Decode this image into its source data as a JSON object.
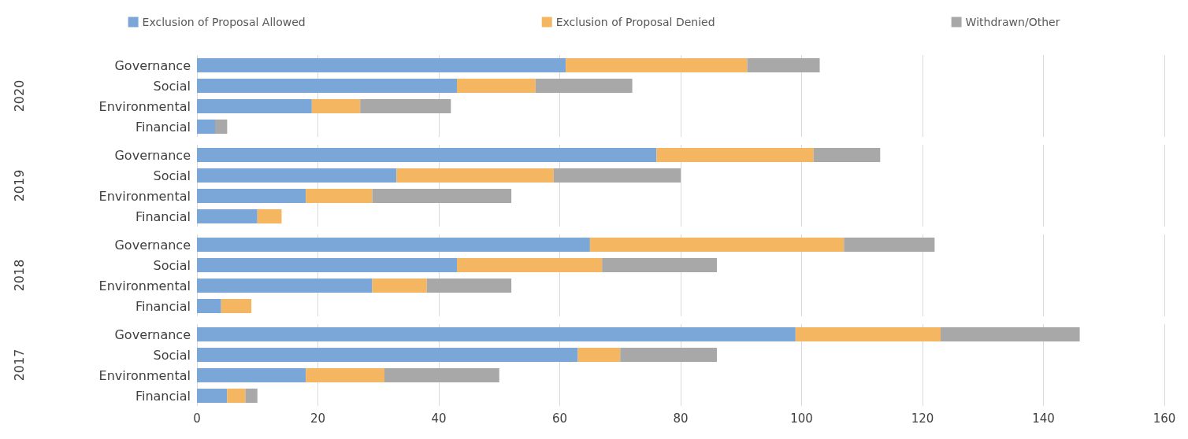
{
  "chart_data": [
    {
      "type": "bar",
      "orientation": "horizontal",
      "stacked": true,
      "ylabel": "2020",
      "categories": [
        "Governance",
        "Social",
        "Environmental",
        "Financial"
      ],
      "legend": "top",
      "grid": "x",
      "tick_labels": "y",
      "xlim": [
        0,
        160
      ],
      "xticks": [
        0,
        20,
        40,
        60,
        80,
        100,
        120,
        140,
        160
      ],
      "series": [
        {
          "name": "Exclusion of Proposal Allowed",
          "color": "#7ba7d8",
          "values": [
            61,
            43,
            19,
            3
          ]
        },
        {
          "name": "Exclusion of Proposal Denied",
          "color": "#f4b660",
          "values": [
            30,
            13,
            8,
            0
          ]
        },
        {
          "name": "Withdrawn/Other",
          "color": "#a8a8a8",
          "values": [
            12,
            16,
            15,
            2
          ]
        }
      ]
    },
    {
      "type": "bar",
      "orientation": "horizontal",
      "stacked": true,
      "ylabel": "2019",
      "categories": [
        "Governance",
        "Social",
        "Environmental",
        "Financial"
      ],
      "grid": "x",
      "tick_labels": "y",
      "xlim": [
        0,
        160
      ],
      "xticks": [
        0,
        20,
        40,
        60,
        80,
        100,
        120,
        140,
        160
      ],
      "series": [
        {
          "color": "#7ba7d8",
          "values": [
            76,
            33,
            18,
            10
          ]
        },
        {
          "color": "#f4b660",
          "values": [
            26,
            26,
            11,
            4
          ]
        },
        {
          "color": "#a8a8a8",
          "values": [
            11,
            21,
            23,
            0
          ]
        }
      ]
    },
    {
      "type": "bar",
      "orientation": "horizontal",
      "stacked": true,
      "ylabel": "2018",
      "categories": [
        "Governance",
        "Social",
        "Environmental",
        "Financial"
      ],
      "grid": "x",
      "tick_labels": "y",
      "xlim": [
        0,
        160
      ],
      "xticks": [
        0,
        20,
        40,
        60,
        80,
        100,
        120,
        140,
        160
      ],
      "series": [
        {
          "color": "#7ba7d8",
          "values": [
            65,
            43,
            29,
            4
          ]
        },
        {
          "color": "#f4b660",
          "values": [
            42,
            24,
            9,
            5
          ]
        },
        {
          "color": "#a8a8a8",
          "values": [
            15,
            19,
            14,
            0
          ]
        }
      ]
    },
    {
      "type": "bar",
      "orientation": "horizontal",
      "stacked": true,
      "ylabel": "2017",
      "categories": [
        "Governance",
        "Social",
        "Environmental",
        "Financial"
      ],
      "grid": "x",
      "xlim": [
        0,
        160
      ],
      "xticks": [
        0,
        20,
        40,
        60,
        80,
        100,
        120,
        140,
        160
      ],
      "series": [
        {
          "color": "#7ba7d8",
          "values": [
            99,
            63,
            18,
            5
          ]
        },
        {
          "color": "#f4b660",
          "values": [
            24,
            7,
            13,
            3
          ]
        },
        {
          "color": "#a8a8a8",
          "values": [
            23,
            16,
            19,
            2
          ]
        }
      ]
    }
  ]
}
